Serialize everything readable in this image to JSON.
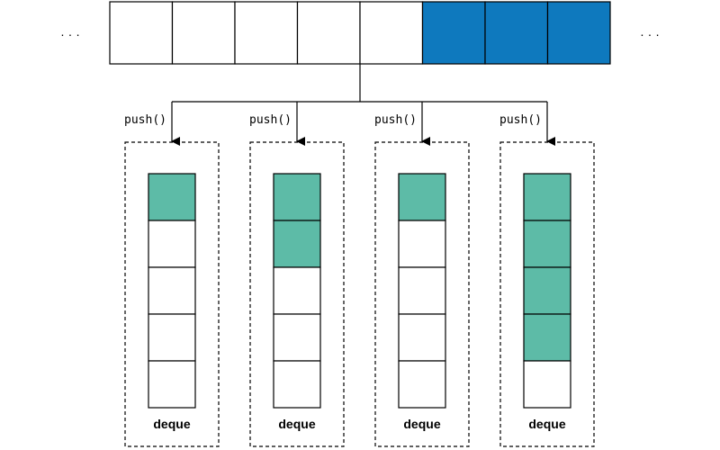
{
  "queue": {
    "ellipsis_left": "· · ·",
    "ellipsis_right": "· · ·",
    "cells": [
      "empty",
      "empty",
      "empty",
      "empty",
      "empty",
      "task",
      "task",
      "task"
    ]
  },
  "push_label": "push()",
  "deques": [
    {
      "label": "deque",
      "filled": 1,
      "capacity": 5
    },
    {
      "label": "deque",
      "filled": 2,
      "capacity": 5
    },
    {
      "label": "deque",
      "filled": 1,
      "capacity": 5
    },
    {
      "label": "deque",
      "filled": 4,
      "capacity": 5
    }
  ],
  "colors": {
    "queue_task": "#0e79be",
    "deque_item": "#5dbba7",
    "stroke": "#000000",
    "empty": "#ffffff"
  }
}
